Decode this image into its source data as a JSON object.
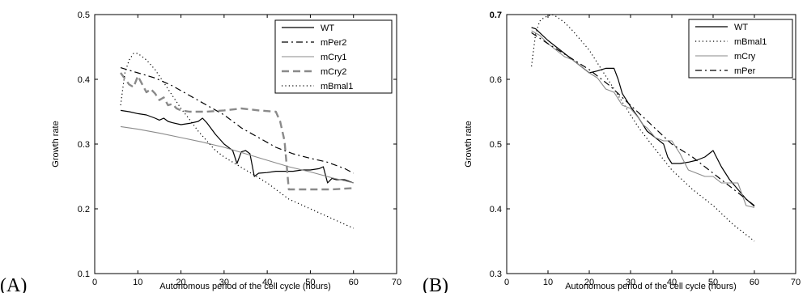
{
  "chart_data": [
    {
      "type": "line",
      "panel_label": "(A)",
      "title": "",
      "xlabel": "Autonomous period of the cell cycle (hours)",
      "ylabel": "Growth rate",
      "xlim": [
        0,
        70
      ],
      "ylim": [
        0.1,
        0.5
      ],
      "xticks": [
        "0",
        "10",
        "20",
        "30",
        "40",
        "50",
        "60",
        "70"
      ],
      "yticks": [
        "0.1",
        "0.2",
        "0.3",
        "0.4",
        "0.5"
      ],
      "legend_position": "top-right",
      "series": [
        {
          "name": "WT",
          "color": "#000000",
          "dash": "solid",
          "x": [
            6,
            8,
            10,
            12,
            14,
            15,
            16,
            17,
            18,
            20,
            22,
            24,
            25,
            26,
            28,
            30,
            32,
            33,
            34,
            35,
            36,
            37,
            38,
            40,
            42,
            44,
            46,
            48,
            50,
            52,
            53,
            54,
            55,
            56,
            58,
            60
          ],
          "y": [
            0.352,
            0.35,
            0.347,
            0.345,
            0.34,
            0.337,
            0.34,
            0.335,
            0.333,
            0.33,
            0.332,
            0.335,
            0.34,
            0.333,
            0.315,
            0.3,
            0.29,
            0.27,
            0.288,
            0.29,
            0.285,
            0.25,
            0.255,
            0.256,
            0.258,
            0.258,
            0.258,
            0.26,
            0.26,
            0.262,
            0.265,
            0.24,
            0.247,
            0.245,
            0.245,
            0.24
          ]
        },
        {
          "name": "mPer2",
          "color": "#000000",
          "dash": "dashdot",
          "x": [
            6,
            10,
            14,
            18,
            22,
            26,
            30,
            34,
            38,
            42,
            46,
            50,
            54,
            58,
            60
          ],
          "y": [
            0.418,
            0.41,
            0.402,
            0.39,
            0.375,
            0.36,
            0.345,
            0.325,
            0.31,
            0.295,
            0.285,
            0.278,
            0.272,
            0.262,
            0.255
          ]
        },
        {
          "name": "mCry1",
          "color": "#8a8a8a",
          "dash": "solid",
          "x": [
            6,
            10,
            15,
            20,
            25,
            30,
            35,
            40,
            45,
            50,
            55,
            60
          ],
          "y": [
            0.327,
            0.323,
            0.317,
            0.31,
            0.303,
            0.295,
            0.285,
            0.275,
            0.265,
            0.257,
            0.248,
            0.24
          ]
        },
        {
          "name": "mCry2",
          "color": "#8a8a8a",
          "dash": "dashed",
          "x": [
            6,
            8,
            9,
            10,
            12,
            13,
            14,
            15,
            16,
            17,
            18,
            19,
            20,
            22,
            26,
            30,
            34,
            38,
            42,
            43,
            44,
            45,
            46,
            50,
            55,
            60
          ],
          "y": [
            0.41,
            0.392,
            0.388,
            0.405,
            0.38,
            0.385,
            0.378,
            0.368,
            0.372,
            0.36,
            0.362,
            0.355,
            0.352,
            0.35,
            0.35,
            0.352,
            0.355,
            0.352,
            0.35,
            0.335,
            0.305,
            0.23,
            0.23,
            0.23,
            0.23,
            0.232
          ]
        },
        {
          "name": "mBmal1",
          "color": "#000000",
          "dash": "dotted",
          "x": [
            6,
            7,
            8,
            9,
            10,
            12,
            14,
            16,
            18,
            20,
            22,
            24,
            26,
            28,
            30,
            32,
            35,
            40,
            45,
            50,
            55,
            60
          ],
          "y": [
            0.36,
            0.41,
            0.43,
            0.44,
            0.44,
            0.43,
            0.415,
            0.395,
            0.375,
            0.355,
            0.338,
            0.32,
            0.305,
            0.29,
            0.28,
            0.272,
            0.26,
            0.24,
            0.215,
            0.2,
            0.185,
            0.17
          ]
        }
      ]
    },
    {
      "type": "line",
      "panel_label": "(B)",
      "title": "",
      "xlabel": "Autonomous period of the cell cycle (hours)",
      "ylabel": "Growth rate",
      "xlim": [
        0,
        70
      ],
      "ylim": [
        0.3,
        0.7
      ],
      "xticks": [
        "0",
        "10",
        "20",
        "30",
        "40",
        "50",
        "60",
        "70"
      ],
      "yticks": [
        "0.3",
        "0.4",
        "0.5",
        "0.6",
        "0.7"
      ],
      "legend_position": "top-right",
      "series": [
        {
          "name": "WT",
          "color": "#000000",
          "dash": "solid",
          "x": [
            6,
            7,
            8,
            10,
            12,
            14,
            16,
            18,
            20,
            22,
            24,
            26,
            27,
            28,
            30,
            32,
            34,
            36,
            38,
            39,
            40,
            42,
            44,
            46,
            48,
            50,
            52,
            54,
            56,
            58,
            60
          ],
          "y": [
            0.68,
            0.678,
            0.672,
            0.66,
            0.65,
            0.64,
            0.63,
            0.62,
            0.61,
            0.613,
            0.617,
            0.617,
            0.6,
            0.578,
            0.558,
            0.54,
            0.52,
            0.51,
            0.5,
            0.48,
            0.47,
            0.47,
            0.472,
            0.475,
            0.48,
            0.49,
            0.465,
            0.445,
            0.43,
            0.415,
            0.404
          ]
        },
        {
          "name": "mBmal1",
          "color": "#000000",
          "dash": "dotted",
          "x": [
            6,
            7,
            8,
            9,
            10,
            11,
            12,
            14,
            16,
            18,
            20,
            22,
            24,
            26,
            28,
            30,
            32,
            35,
            40,
            45,
            50,
            55,
            60
          ],
          "y": [
            0.62,
            0.67,
            0.69,
            0.695,
            0.698,
            0.7,
            0.697,
            0.688,
            0.675,
            0.66,
            0.645,
            0.625,
            0.605,
            0.585,
            0.565,
            0.545,
            0.525,
            0.5,
            0.46,
            0.43,
            0.405,
            0.375,
            0.35
          ]
        },
        {
          "name": "mCry",
          "color": "#8a8a8a",
          "dash": "solid",
          "x": [
            6,
            8,
            10,
            12,
            14,
            16,
            18,
            20,
            22,
            24,
            26,
            28,
            30,
            32,
            33,
            34,
            36,
            38,
            40,
            42,
            44,
            46,
            48,
            50,
            52,
            54,
            56,
            58,
            60
          ],
          "y": [
            0.675,
            0.668,
            0.655,
            0.645,
            0.635,
            0.63,
            0.62,
            0.61,
            0.602,
            0.585,
            0.58,
            0.56,
            0.555,
            0.54,
            0.53,
            0.525,
            0.51,
            0.505,
            0.505,
            0.485,
            0.46,
            0.455,
            0.45,
            0.45,
            0.44,
            0.44,
            0.44,
            0.405,
            0.402
          ]
        },
        {
          "name": "mPer",
          "color": "#000000",
          "dash": "dashdot",
          "x": [
            6,
            10,
            15,
            20,
            25,
            30,
            35,
            40,
            45,
            50,
            55,
            60
          ],
          "y": [
            0.672,
            0.655,
            0.635,
            0.615,
            0.59,
            0.56,
            0.53,
            0.5,
            0.48,
            0.455,
            0.43,
            0.405
          ]
        }
      ]
    }
  ]
}
